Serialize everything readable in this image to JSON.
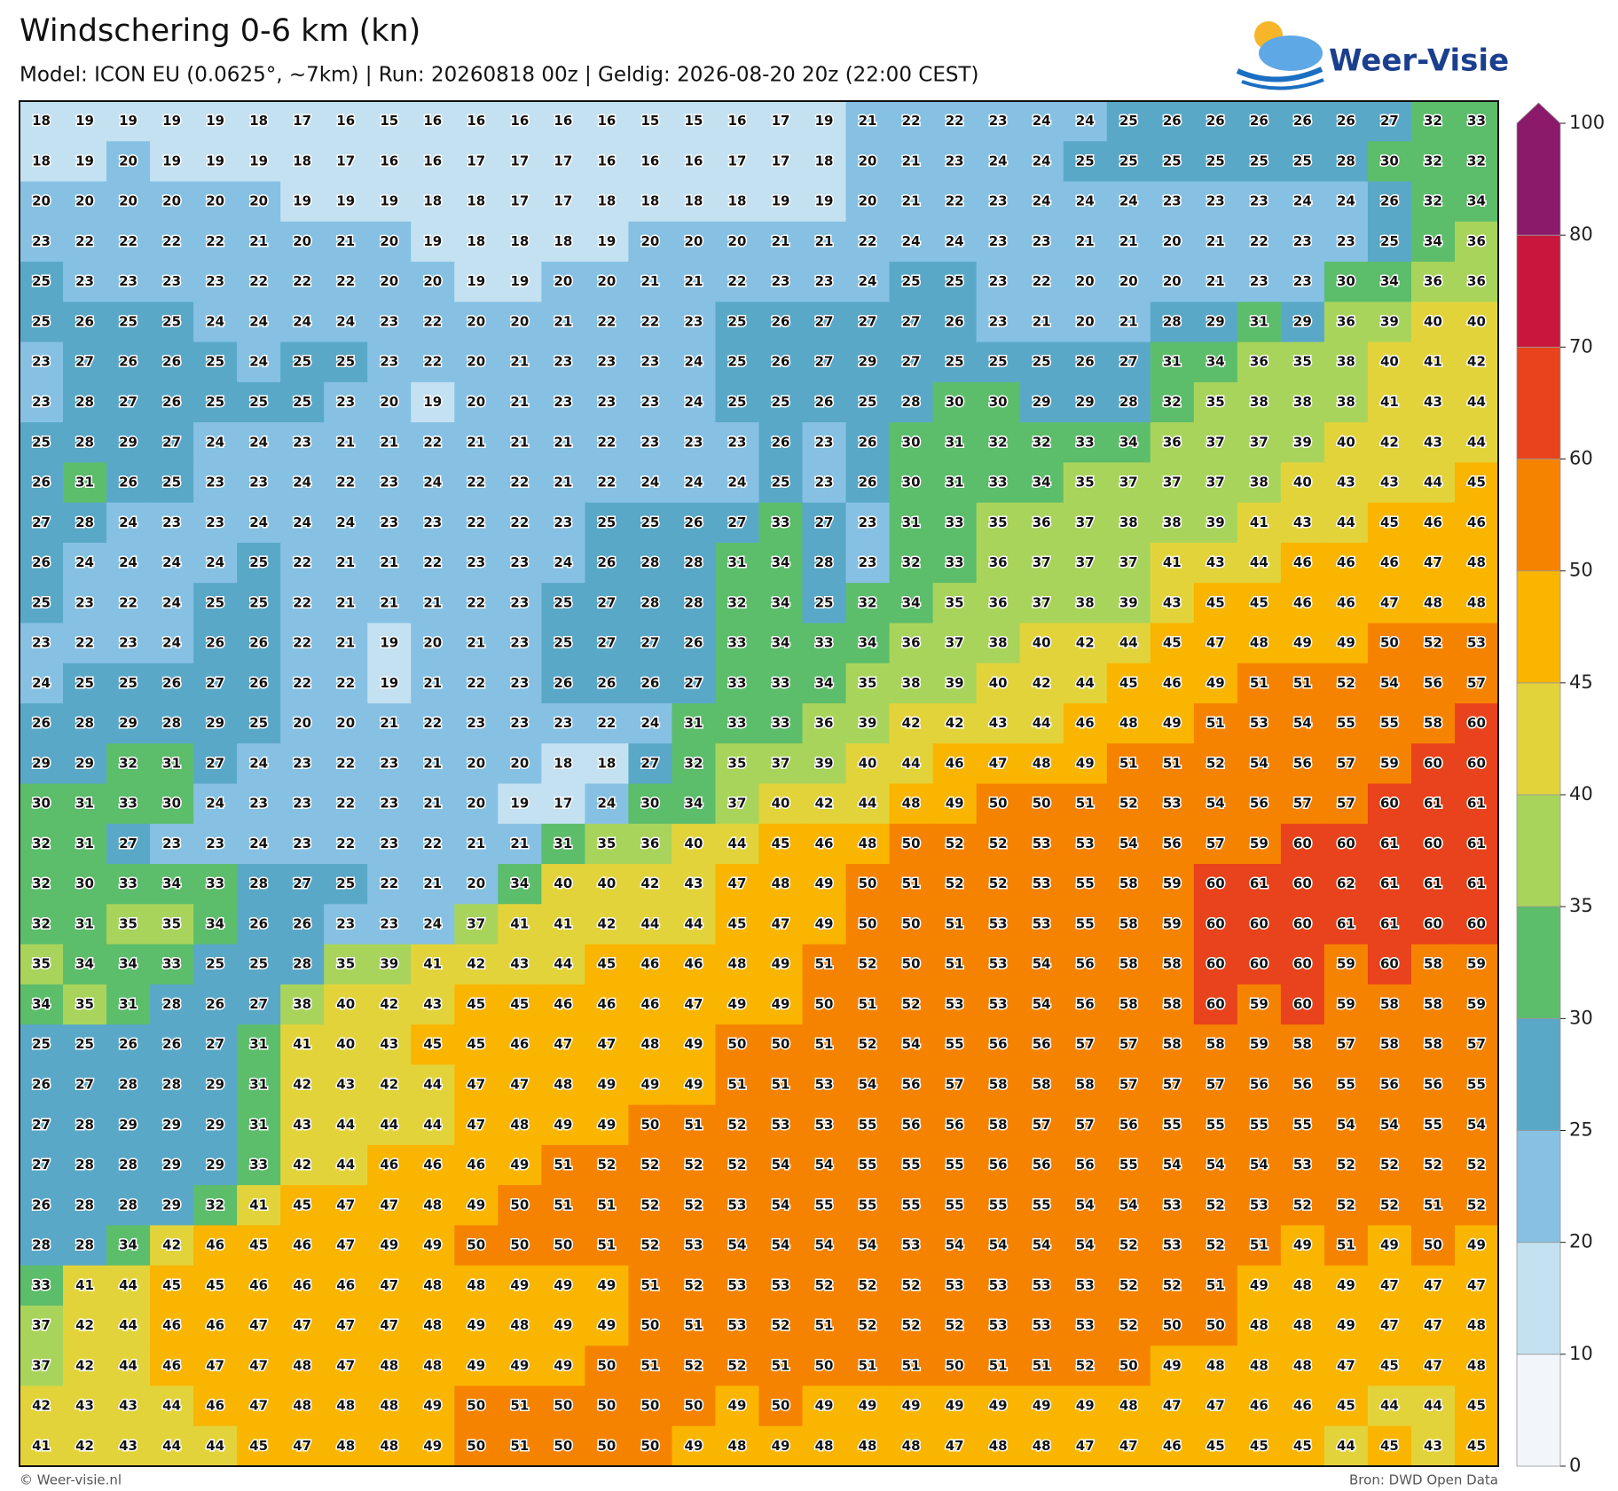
{
  "header": {
    "title": "Windschering 0-6 km (kn)",
    "subtitle": "Model: ICON EU (0.0625°, ~7km)  |  Run: 20260818 00z  |  Geldig: 2026-08-20 20z (22:00 CEST)",
    "logo": "Weer-Visie"
  },
  "grid": {
    "rows": [
      [
        18,
        19,
        19,
        19,
        19,
        18,
        17,
        16,
        15,
        16,
        16,
        16,
        16,
        16,
        15,
        15,
        16,
        17,
        19,
        21,
        22,
        22,
        23,
        24,
        24,
        25,
        26,
        26,
        26,
        26,
        26,
        27,
        32,
        33
      ],
      [
        18,
        19,
        20,
        19,
        19,
        19,
        18,
        17,
        16,
        16,
        17,
        17,
        17,
        16,
        16,
        16,
        17,
        17,
        18,
        20,
        21,
        23,
        24,
        24,
        25,
        25,
        25,
        25,
        25,
        25,
        28,
        30,
        32,
        32
      ],
      [
        20,
        20,
        20,
        20,
        20,
        20,
        19,
        19,
        19,
        18,
        18,
        17,
        17,
        18,
        18,
        18,
        18,
        19,
        19,
        20,
        21,
        22,
        23,
        24,
        24,
        24,
        23,
        23,
        23,
        24,
        24,
        26,
        32,
        34
      ],
      [
        23,
        22,
        22,
        22,
        22,
        21,
        20,
        21,
        20,
        19,
        18,
        18,
        18,
        19,
        20,
        20,
        20,
        21,
        21,
        22,
        24,
        24,
        23,
        23,
        21,
        21,
        20,
        21,
        22,
        23,
        23,
        25,
        34,
        36
      ],
      [
        25,
        23,
        23,
        23,
        23,
        22,
        22,
        22,
        20,
        20,
        19,
        19,
        20,
        20,
        21,
        21,
        22,
        23,
        23,
        24,
        25,
        25,
        23,
        22,
        20,
        20,
        20,
        21,
        23,
        23,
        30,
        34,
        36,
        36
      ],
      [
        25,
        26,
        25,
        25,
        24,
        24,
        24,
        24,
        23,
        22,
        20,
        20,
        21,
        22,
        22,
        23,
        25,
        26,
        27,
        27,
        27,
        26,
        23,
        21,
        20,
        21,
        28,
        29,
        31,
        29,
        36,
        39,
        40,
        40
      ],
      [
        23,
        27,
        26,
        26,
        25,
        24,
        25,
        25,
        23,
        22,
        20,
        21,
        23,
        23,
        23,
        24,
        25,
        26,
        27,
        29,
        27,
        25,
        25,
        25,
        26,
        27,
        31,
        34,
        36,
        35,
        38,
        40,
        41,
        42
      ],
      [
        23,
        28,
        27,
        26,
        25,
        25,
        25,
        23,
        20,
        19,
        20,
        21,
        23,
        23,
        23,
        24,
        25,
        25,
        26,
        25,
        28,
        30,
        30,
        29,
        29,
        28,
        32,
        35,
        38,
        38,
        38,
        41,
        43,
        44
      ],
      [
        25,
        28,
        29,
        27,
        24,
        24,
        23,
        21,
        21,
        22,
        21,
        21,
        21,
        22,
        23,
        23,
        23,
        26,
        23,
        26,
        30,
        31,
        32,
        32,
        33,
        34,
        36,
        37,
        37,
        39,
        40,
        42,
        43,
        44
      ],
      [
        26,
        31,
        26,
        25,
        23,
        23,
        24,
        22,
        23,
        24,
        22,
        22,
        21,
        22,
        24,
        24,
        24,
        25,
        23,
        26,
        30,
        31,
        33,
        34,
        35,
        37,
        37,
        37,
        38,
        40,
        43,
        43,
        44,
        45
      ],
      [
        27,
        28,
        24,
        23,
        23,
        24,
        24,
        24,
        23,
        23,
        22,
        22,
        23,
        25,
        25,
        26,
        27,
        33,
        27,
        23,
        31,
        33,
        35,
        36,
        37,
        38,
        38,
        39,
        41,
        43,
        44,
        45,
        46,
        46
      ],
      [
        26,
        24,
        24,
        24,
        24,
        25,
        22,
        21,
        21,
        22,
        23,
        23,
        24,
        26,
        28,
        28,
        31,
        34,
        28,
        23,
        32,
        33,
        36,
        37,
        37,
        37,
        41,
        43,
        44,
        46,
        46,
        46,
        47,
        48
      ],
      [
        25,
        23,
        22,
        24,
        25,
        25,
        22,
        21,
        21,
        21,
        22,
        23,
        25,
        27,
        28,
        28,
        32,
        34,
        25,
        32,
        34,
        35,
        36,
        37,
        38,
        39,
        43,
        45,
        45,
        46,
        46,
        47,
        48,
        48
      ],
      [
        23,
        22,
        23,
        24,
        26,
        26,
        22,
        21,
        19,
        20,
        21,
        23,
        25,
        27,
        27,
        26,
        33,
        34,
        33,
        34,
        36,
        37,
        38,
        40,
        42,
        44,
        45,
        47,
        48,
        49,
        49,
        50,
        52,
        53
      ],
      [
        24,
        25,
        25,
        26,
        27,
        26,
        22,
        22,
        19,
        21,
        22,
        23,
        26,
        26,
        26,
        27,
        33,
        33,
        34,
        35,
        38,
        39,
        40,
        42,
        44,
        45,
        46,
        49,
        51,
        51,
        52,
        54,
        56,
        57
      ],
      [
        26,
        28,
        29,
        28,
        29,
        25,
        20,
        20,
        21,
        22,
        23,
        23,
        23,
        22,
        24,
        31,
        33,
        33,
        36,
        39,
        42,
        42,
        43,
        44,
        46,
        48,
        49,
        51,
        53,
        54,
        55,
        55,
        58,
        60
      ],
      [
        29,
        29,
        32,
        31,
        27,
        24,
        23,
        22,
        23,
        21,
        20,
        20,
        18,
        18,
        27,
        32,
        35,
        37,
        39,
        40,
        44,
        46,
        47,
        48,
        49,
        51,
        51,
        52,
        54,
        56,
        57,
        59,
        60,
        60
      ],
      [
        30,
        31,
        33,
        30,
        24,
        23,
        23,
        22,
        23,
        21,
        20,
        19,
        17,
        24,
        30,
        34,
        37,
        40,
        42,
        44,
        48,
        49,
        50,
        50,
        51,
        52,
        53,
        54,
        56,
        57,
        57,
        60,
        61,
        61
      ],
      [
        32,
        31,
        27,
        23,
        23,
        24,
        23,
        22,
        23,
        22,
        21,
        21,
        31,
        35,
        36,
        40,
        44,
        45,
        46,
        48,
        50,
        52,
        52,
        53,
        53,
        54,
        56,
        57,
        59,
        60,
        60,
        61,
        60,
        61
      ],
      [
        32,
        30,
        33,
        34,
        33,
        28,
        27,
        25,
        22,
        21,
        20,
        34,
        40,
        40,
        42,
        43,
        47,
        48,
        49,
        50,
        51,
        52,
        52,
        53,
        55,
        58,
        59,
        60,
        61,
        60,
        62,
        61,
        61,
        61
      ],
      [
        32,
        31,
        35,
        35,
        34,
        26,
        26,
        23,
        23,
        24,
        37,
        41,
        41,
        42,
        44,
        44,
        45,
        47,
        49,
        50,
        50,
        51,
        53,
        53,
        55,
        58,
        59,
        60,
        60,
        60,
        61,
        61,
        60,
        60
      ],
      [
        35,
        34,
        34,
        33,
        25,
        25,
        28,
        35,
        39,
        41,
        42,
        43,
        44,
        45,
        46,
        46,
        48,
        49,
        51,
        52,
        50,
        51,
        53,
        54,
        56,
        58,
        58,
        60,
        60,
        60,
        59,
        60,
        58,
        59
      ],
      [
        34,
        35,
        31,
        28,
        26,
        27,
        38,
        40,
        42,
        43,
        45,
        45,
        46,
        46,
        46,
        47,
        49,
        49,
        50,
        51,
        52,
        53,
        53,
        54,
        56,
        58,
        58,
        60,
        59,
        60,
        59,
        58,
        58,
        59
      ],
      [
        25,
        25,
        26,
        26,
        27,
        31,
        41,
        40,
        43,
        45,
        45,
        46,
        47,
        47,
        48,
        49,
        50,
        50,
        51,
        52,
        54,
        55,
        56,
        56,
        57,
        57,
        58,
        58,
        59,
        58,
        57,
        58,
        58,
        57
      ],
      [
        26,
        27,
        28,
        28,
        29,
        31,
        42,
        43,
        42,
        44,
        47,
        47,
        48,
        49,
        49,
        49,
        51,
        51,
        53,
        54,
        56,
        57,
        58,
        58,
        58,
        57,
        57,
        57,
        56,
        56,
        55,
        56,
        56,
        55
      ],
      [
        27,
        28,
        29,
        29,
        29,
        31,
        43,
        44,
        44,
        44,
        47,
        48,
        49,
        49,
        50,
        51,
        52,
        53,
        53,
        55,
        56,
        56,
        58,
        57,
        57,
        56,
        55,
        55,
        55,
        55,
        54,
        54,
        55,
        54
      ],
      [
        27,
        28,
        28,
        29,
        29,
        33,
        42,
        44,
        46,
        46,
        46,
        49,
        51,
        52,
        52,
        52,
        52,
        54,
        54,
        55,
        55,
        55,
        56,
        56,
        56,
        55,
        54,
        54,
        54,
        53,
        52,
        52,
        52,
        52
      ],
      [
        26,
        28,
        28,
        29,
        32,
        41,
        45,
        47,
        47,
        48,
        49,
        50,
        51,
        51,
        52,
        52,
        53,
        54,
        55,
        55,
        55,
        55,
        55,
        55,
        54,
        54,
        53,
        52,
        53,
        52,
        52,
        52,
        51,
        52
      ],
      [
        28,
        28,
        34,
        42,
        46,
        45,
        46,
        47,
        49,
        49,
        50,
        50,
        50,
        51,
        52,
        53,
        54,
        54,
        54,
        54,
        53,
        54,
        54,
        54,
        54,
        52,
        53,
        52,
        51,
        49,
        51,
        49,
        50,
        49
      ],
      [
        33,
        41,
        44,
        45,
        45,
        46,
        46,
        46,
        47,
        48,
        48,
        49,
        49,
        49,
        51,
        52,
        53,
        53,
        52,
        52,
        52,
        53,
        53,
        53,
        53,
        52,
        52,
        51,
        49,
        48,
        49,
        47,
        47,
        47
      ],
      [
        37,
        42,
        44,
        46,
        46,
        47,
        47,
        47,
        47,
        48,
        49,
        48,
        49,
        49,
        50,
        51,
        53,
        52,
        51,
        52,
        52,
        52,
        53,
        53,
        53,
        52,
        50,
        50,
        48,
        48,
        49,
        47,
        47,
        48
      ],
      [
        37,
        42,
        44,
        46,
        47,
        47,
        48,
        47,
        48,
        48,
        49,
        49,
        49,
        50,
        51,
        52,
        52,
        51,
        50,
        51,
        51,
        50,
        51,
        51,
        52,
        50,
        49,
        48,
        48,
        48,
        47,
        45,
        47,
        48
      ],
      [
        42,
        43,
        43,
        44,
        46,
        47,
        48,
        48,
        48,
        49,
        50,
        51,
        50,
        50,
        50,
        50,
        49,
        50,
        49,
        49,
        49,
        49,
        49,
        49,
        49,
        48,
        47,
        47,
        46,
        46,
        45,
        44,
        44,
        45
      ],
      [
        41,
        42,
        43,
        44,
        44,
        45,
        47,
        48,
        48,
        49,
        50,
        51,
        50,
        50,
        50,
        49,
        48,
        49,
        48,
        48,
        48,
        47,
        48,
        48,
        47,
        47,
        46,
        45,
        45,
        45,
        44,
        45,
        43,
        45
      ]
    ]
  },
  "colorbar": {
    "levels": [
      0,
      10,
      20,
      25,
      30,
      35,
      40,
      45,
      50,
      60,
      70,
      80,
      100
    ],
    "colors": [
      "#f2f6fa",
      "#c4e1f1",
      "#86c1e4",
      "#5aa8c8",
      "#5cbd6b",
      "#a9d45b",
      "#e3d33b",
      "#f9b500",
      "#f68300",
      "#e8431c",
      "#c8173c",
      "#8b1a6b"
    ]
  },
  "footer": {
    "left": "© Weer-visie.nl",
    "right": "Bron: DWD Open Data"
  }
}
